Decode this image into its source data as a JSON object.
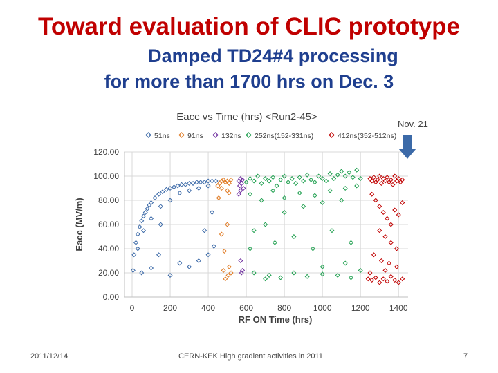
{
  "slide": {
    "title": "Toward evaluation of CLIC prototype",
    "subtitle_line1": "Damped TD24#4 processing",
    "subtitle_line2": "for more than 1700 hrs on Dec. 3",
    "footer_date": "2011/12/14",
    "footer_center": "CERN-KEK High gradient activities in 2011",
    "page_number": "7"
  },
  "chart_data": {
    "type": "scatter",
    "title": "Eacc vs Time (hrs) <Run2-45>",
    "xlabel": "RF ON Time (hrs)",
    "ylabel": "Eacc (MV/m)",
    "xlim": [
      -40,
      1450
    ],
    "ylim": [
      0,
      120
    ],
    "x_ticks": [
      "0",
      "200",
      "400",
      "600",
      "800",
      "1000",
      "1200",
      "1400"
    ],
    "y_ticks": [
      "0.00",
      "20.00",
      "40.00",
      "60.00",
      "80.00",
      "100.00",
      "120.00"
    ],
    "grid": true,
    "legend_position": "top",
    "annotation": {
      "text": "Nov. 21",
      "x": 1400,
      "color": "#2e6db5"
    },
    "series": [
      {
        "name": "51ns",
        "color": "#3c6aa8",
        "points": [
          [
            5,
            22
          ],
          [
            10,
            35
          ],
          [
            20,
            45
          ],
          [
            30,
            52
          ],
          [
            40,
            58
          ],
          [
            50,
            63
          ],
          [
            60,
            67
          ],
          [
            70,
            70
          ],
          [
            80,
            73
          ],
          [
            90,
            76
          ],
          [
            100,
            78
          ],
          [
            120,
            82
          ],
          [
            140,
            85
          ],
          [
            160,
            87
          ],
          [
            180,
            89
          ],
          [
            200,
            90
          ],
          [
            220,
            91
          ],
          [
            240,
            92
          ],
          [
            260,
            93
          ],
          [
            280,
            93
          ],
          [
            300,
            94
          ],
          [
            320,
            94
          ],
          [
            340,
            95
          ],
          [
            360,
            95
          ],
          [
            380,
            95
          ],
          [
            400,
            96
          ],
          [
            420,
            96
          ],
          [
            440,
            96
          ],
          [
            30,
            40
          ],
          [
            60,
            55
          ],
          [
            100,
            65
          ],
          [
            150,
            75
          ],
          [
            200,
            80
          ],
          [
            250,
            86
          ],
          [
            300,
            88
          ],
          [
            350,
            90
          ],
          [
            400,
            92
          ],
          [
            140,
            35
          ],
          [
            250,
            28
          ],
          [
            300,
            25
          ],
          [
            350,
            30
          ],
          [
            380,
            55
          ],
          [
            400,
            35
          ],
          [
            50,
            20
          ],
          [
            100,
            24
          ],
          [
            200,
            18
          ],
          [
            150,
            60
          ],
          [
            420,
            70
          ],
          [
            430,
            42
          ]
        ]
      },
      {
        "name": "91ns",
        "color": "#e07b24",
        "points": [
          [
            450,
            92
          ],
          [
            460,
            94
          ],
          [
            470,
            96
          ],
          [
            480,
            97
          ],
          [
            490,
            95
          ],
          [
            500,
            96
          ],
          [
            510,
            94
          ],
          [
            520,
            97
          ],
          [
            470,
            90
          ],
          [
            500,
            88
          ],
          [
            455,
            82
          ],
          [
            510,
            86
          ],
          [
            480,
            22
          ],
          [
            490,
            15
          ],
          [
            505,
            18
          ],
          [
            520,
            20
          ],
          [
            510,
            25
          ],
          [
            470,
            52
          ],
          [
            500,
            60
          ],
          [
            485,
            38
          ]
        ]
      },
      {
        "name": "132ns",
        "color": "#7030a0",
        "points": [
          [
            560,
            96
          ],
          [
            565,
            92
          ],
          [
            570,
            98
          ],
          [
            575,
            94
          ],
          [
            580,
            97
          ],
          [
            585,
            90
          ],
          [
            560,
            85
          ],
          [
            570,
            88
          ],
          [
            575,
            20
          ],
          [
            580,
            22
          ],
          [
            570,
            30
          ]
        ]
      },
      {
        "name": "252ns(152-331ns)",
        "color": "#20a050",
        "points": [
          [
            600,
            95
          ],
          [
            620,
            98
          ],
          [
            640,
            96
          ],
          [
            660,
            100
          ],
          [
            680,
            94
          ],
          [
            700,
            98
          ],
          [
            720,
            96
          ],
          [
            740,
            99
          ],
          [
            760,
            92
          ],
          [
            780,
            97
          ],
          [
            800,
            100
          ],
          [
            820,
            95
          ],
          [
            840,
            98
          ],
          [
            860,
            94
          ],
          [
            880,
            99
          ],
          [
            900,
            96
          ],
          [
            920,
            101
          ],
          [
            940,
            97
          ],
          [
            960,
            95
          ],
          [
            980,
            100
          ],
          [
            1000,
            98
          ],
          [
            1020,
            96
          ],
          [
            1040,
            102
          ],
          [
            1060,
            98
          ],
          [
            1080,
            101
          ],
          [
            1100,
            104
          ],
          [
            1120,
            100
          ],
          [
            1140,
            103
          ],
          [
            1160,
            99
          ],
          [
            1180,
            105
          ],
          [
            1200,
            98
          ],
          [
            620,
            85
          ],
          [
            680,
            80
          ],
          [
            740,
            88
          ],
          [
            800,
            82
          ],
          [
            880,
            86
          ],
          [
            960,
            84
          ],
          [
            1040,
            88
          ],
          [
            1120,
            90
          ],
          [
            1180,
            92
          ],
          [
            700,
            60
          ],
          [
            800,
            70
          ],
          [
            900,
            75
          ],
          [
            1000,
            78
          ],
          [
            1100,
            80
          ],
          [
            640,
            55
          ],
          [
            750,
            45
          ],
          [
            850,
            50
          ],
          [
            950,
            40
          ],
          [
            1050,
            55
          ],
          [
            1150,
            45
          ],
          [
            620,
            40
          ],
          [
            720,
            18
          ],
          [
            780,
            16
          ],
          [
            850,
            20
          ],
          [
            920,
            17
          ],
          [
            1000,
            19
          ],
          [
            1080,
            18
          ],
          [
            1150,
            16
          ],
          [
            1200,
            22
          ],
          [
            640,
            20
          ],
          [
            700,
            15
          ],
          [
            1000,
            25
          ],
          [
            1120,
            28
          ]
        ]
      },
      {
        "name": "412ns(352-512ns)",
        "color": "#c00000",
        "points": [
          [
            1250,
            98
          ],
          [
            1260,
            96
          ],
          [
            1270,
            99
          ],
          [
            1280,
            95
          ],
          [
            1290,
            97
          ],
          [
            1300,
            100
          ],
          [
            1310,
            94
          ],
          [
            1320,
            98
          ],
          [
            1330,
            96
          ],
          [
            1340,
            99
          ],
          [
            1350,
            95
          ],
          [
            1360,
            97
          ],
          [
            1370,
            93
          ],
          [
            1380,
            100
          ],
          [
            1390,
            96
          ],
          [
            1400,
            98
          ],
          [
            1410,
            95
          ],
          [
            1420,
            97
          ],
          [
            1260,
            85
          ],
          [
            1280,
            80
          ],
          [
            1300,
            75
          ],
          [
            1320,
            70
          ],
          [
            1340,
            65
          ],
          [
            1360,
            60
          ],
          [
            1380,
            72
          ],
          [
            1400,
            68
          ],
          [
            1420,
            78
          ],
          [
            1300,
            55
          ],
          [
            1330,
            50
          ],
          [
            1360,
            45
          ],
          [
            1390,
            40
          ],
          [
            1270,
            35
          ],
          [
            1310,
            30
          ],
          [
            1350,
            28
          ],
          [
            1240,
            15
          ],
          [
            1260,
            14
          ],
          [
            1280,
            16
          ],
          [
            1300,
            12
          ],
          [
            1320,
            15
          ],
          [
            1340,
            13
          ],
          [
            1360,
            17
          ],
          [
            1380,
            14
          ],
          [
            1400,
            12
          ],
          [
            1420,
            15
          ],
          [
            1250,
            20
          ],
          [
            1330,
            22
          ],
          [
            1390,
            25
          ]
        ]
      }
    ]
  }
}
